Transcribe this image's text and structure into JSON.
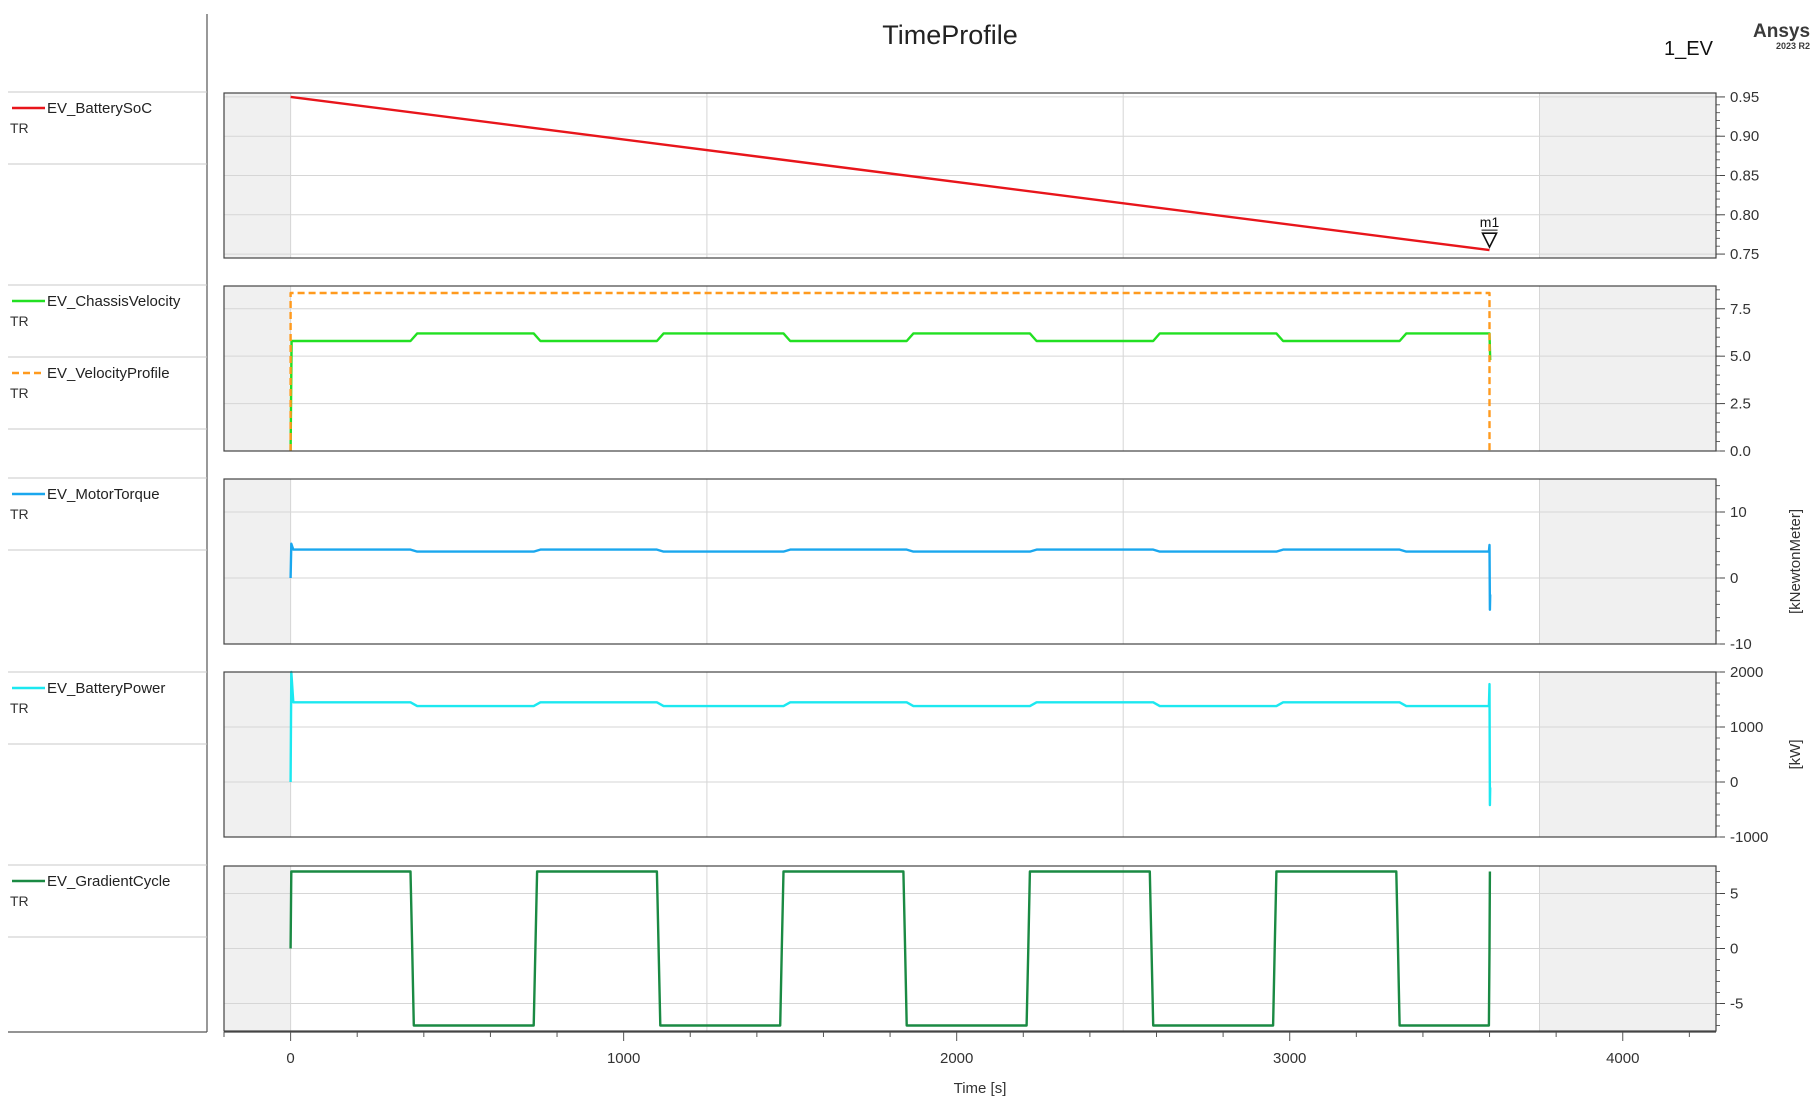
{
  "header": {
    "title": "TimeProfile",
    "design_name": "1_EV",
    "brand": "Ansys",
    "brand_version": "2023 R2"
  },
  "chart_data": {
    "type": "line",
    "title": "TimeProfile",
    "xlabel": "Time [s]",
    "xlim": [
      -200,
      4280
    ],
    "xticks": [
      0,
      1000,
      2000,
      3000,
      4000
    ],
    "sim_range": [
      0,
      3600
    ],
    "grid": true,
    "legend_placement": "left",
    "marker": {
      "label": "m1",
      "x": 3600,
      "y": 0.755
    },
    "panels": [
      {
        "ylabel": "",
        "ylim": [
          0.745,
          0.955
        ],
        "yticks": [
          0.75,
          0.8,
          0.85,
          0.9,
          0.95
        ],
        "ytick_labels": [
          "0.75",
          "0.80",
          "0.85",
          "0.90",
          "0.95"
        ],
        "series": [
          {
            "name": "EV_BatterySoC",
            "sub": "TR",
            "color": "#e8151b",
            "dashed": false,
            "points": [
              [
                0,
                0.95
              ],
              [
                3600,
                0.755
              ]
            ]
          }
        ]
      },
      {
        "ylabel": "",
        "ylim": [
          0,
          8.7
        ],
        "yticks": [
          0,
          2.5,
          5,
          7.5
        ],
        "ytick_labels": [
          "0.0",
          "2.5",
          "5.0",
          "7.5"
        ],
        "series": [
          {
            "name": "EV_ChassisVelocity",
            "sub": "TR",
            "color": "#22e022",
            "dashed": false,
            "points": [
              [
                0,
                0
              ],
              [
                3,
                5.8
              ],
              [
                360,
                5.8
              ],
              [
                380,
                6.2
              ],
              [
                730,
                6.2
              ],
              [
                750,
                5.8
              ],
              [
                1100,
                5.8
              ],
              [
                1120,
                6.2
              ],
              [
                1480,
                6.2
              ],
              [
                1500,
                5.8
              ],
              [
                1850,
                5.8
              ],
              [
                1870,
                6.2
              ],
              [
                2220,
                6.2
              ],
              [
                2240,
                5.8
              ],
              [
                2590,
                5.8
              ],
              [
                2610,
                6.2
              ],
              [
                2960,
                6.2
              ],
              [
                2980,
                5.8
              ],
              [
                3330,
                5.8
              ],
              [
                3350,
                6.2
              ],
              [
                3600,
                6.2
              ],
              [
                3602,
                4.8
              ]
            ]
          },
          {
            "name": "EV_VelocityProfile",
            "sub": "TR",
            "color": "#ff9a1e",
            "dashed": true,
            "points": [
              [
                0,
                0
              ],
              [
                0,
                8.33
              ],
              [
                3600,
                8.33
              ],
              [
                3600,
                0
              ]
            ]
          }
        ]
      },
      {
        "ylabel": "[kNewtonMeter]",
        "ylim": [
          -10,
          15
        ],
        "yticks": [
          -10,
          0,
          10
        ],
        "ytick_labels": [
          "-10",
          "0",
          "10"
        ],
        "series": [
          {
            "name": "EV_MotorTorque",
            "sub": "TR",
            "color": "#1aa7ee",
            "dashed": false,
            "points": [
              [
                0,
                0
              ],
              [
                2,
                5.2
              ],
              [
                8,
                4.3
              ],
              [
                360,
                4.3
              ],
              [
                380,
                4.0
              ],
              [
                730,
                4.0
              ],
              [
                750,
                4.3
              ],
              [
                1100,
                4.3
              ],
              [
                1120,
                4.0
              ],
              [
                1480,
                4.0
              ],
              [
                1500,
                4.3
              ],
              [
                1850,
                4.3
              ],
              [
                1870,
                4.0
              ],
              [
                2220,
                4.0
              ],
              [
                2240,
                4.3
              ],
              [
                2590,
                4.3
              ],
              [
                2610,
                4.0
              ],
              [
                2960,
                4.0
              ],
              [
                2980,
                4.3
              ],
              [
                3330,
                4.3
              ],
              [
                3350,
                4.0
              ],
              [
                3598,
                4.0
              ],
              [
                3600,
                5.0
              ],
              [
                3601,
                -4.8
              ],
              [
                3602,
                -2.5
              ]
            ]
          }
        ]
      },
      {
        "ylabel": "[kW]",
        "ylim": [
          -1000,
          2000
        ],
        "yticks": [
          -1000,
          0,
          1000,
          2000
        ],
        "ytick_labels": [
          "-1000",
          "0",
          "1000",
          "2000"
        ],
        "series": [
          {
            "name": "EV_BatteryPower",
            "sub": "TR",
            "color": "#1ce8f0",
            "dashed": false,
            "points": [
              [
                0,
                0
              ],
              [
                2,
                2000
              ],
              [
                8,
                1450
              ],
              [
                360,
                1450
              ],
              [
                380,
                1380
              ],
              [
                730,
                1380
              ],
              [
                750,
                1450
              ],
              [
                1100,
                1450
              ],
              [
                1120,
                1380
              ],
              [
                1480,
                1380
              ],
              [
                1500,
                1450
              ],
              [
                1850,
                1450
              ],
              [
                1870,
                1380
              ],
              [
                2220,
                1380
              ],
              [
                2240,
                1450
              ],
              [
                2590,
                1450
              ],
              [
                2610,
                1380
              ],
              [
                2960,
                1380
              ],
              [
                2980,
                1450
              ],
              [
                3330,
                1450
              ],
              [
                3350,
                1380
              ],
              [
                3598,
                1380
              ],
              [
                3600,
                1780
              ],
              [
                3601,
                -420
              ],
              [
                3602,
                -100
              ]
            ]
          }
        ]
      },
      {
        "ylabel": "",
        "ylim": [
          -7.5,
          7.5
        ],
        "yticks": [
          -5,
          0,
          5
        ],
        "ytick_labels": [
          "-5",
          "0",
          "5"
        ],
        "series": [
          {
            "name": "EV_GradientCycle",
            "sub": "TR",
            "color": "#1a8a43",
            "dashed": false,
            "points": [
              [
                0,
                0
              ],
              [
                2,
                7
              ],
              [
                360,
                7
              ],
              [
                365,
                0
              ],
              [
                370,
                -7
              ],
              [
                730,
                -7
              ],
              [
                735,
                0
              ],
              [
                740,
                7
              ],
              [
                1100,
                7
              ],
              [
                1105,
                0
              ],
              [
                1110,
                -7
              ],
              [
                1470,
                -7
              ],
              [
                1475,
                0
              ],
              [
                1480,
                7
              ],
              [
                1840,
                7
              ],
              [
                1845,
                0
              ],
              [
                1850,
                -7
              ],
              [
                2210,
                -7
              ],
              [
                2215,
                0
              ],
              [
                2220,
                7
              ],
              [
                2580,
                7
              ],
              [
                2585,
                0
              ],
              [
                2590,
                -7
              ],
              [
                2950,
                -7
              ],
              [
                2955,
                0
              ],
              [
                2960,
                7
              ],
              [
                3320,
                7
              ],
              [
                3325,
                0
              ],
              [
                3330,
                -7
              ],
              [
                3598,
                -7
              ],
              [
                3600,
                0
              ],
              [
                3601,
                7
              ]
            ]
          }
        ]
      }
    ]
  }
}
